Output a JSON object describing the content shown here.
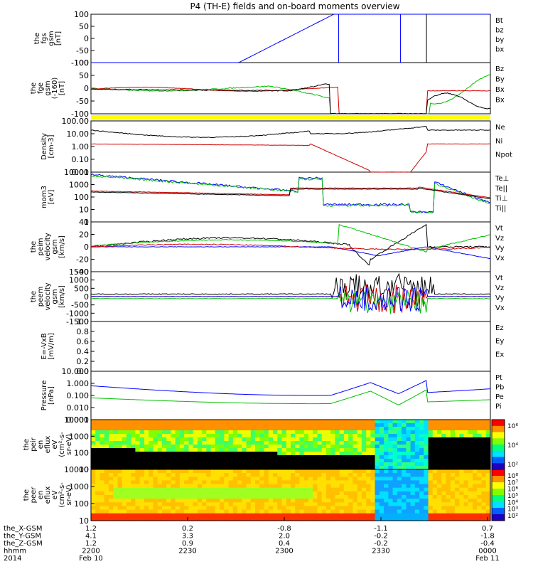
{
  "title": "P4 (TH-E) fields and on-board moments overview",
  "chart_data": [
    {
      "type": "line",
      "panel": "fgs_gsm",
      "ylabel": [
        "the",
        "fgs",
        "gsm",
        "[nT]"
      ],
      "yticks": [
        "100",
        "50",
        "0",
        "-50",
        "-100"
      ],
      "ylim": [
        -100,
        100
      ],
      "legend": [
        {
          "name": "Bt",
          "color": "#000000"
        },
        {
          "name": "bz",
          "color": "#d00000"
        },
        {
          "name": "by",
          "color": "#00c000"
        },
        {
          "name": "bx",
          "color": "#0000ff"
        }
      ]
    },
    {
      "type": "line",
      "panel": "fge_gsm",
      "ylabel": [
        "the",
        "fge",
        "gsm",
        "(-160)",
        "[nT]"
      ],
      "yticks": [
        "100",
        "50",
        "0",
        "-50",
        "-100"
      ],
      "ylim": [
        -120,
        100
      ],
      "legend": [
        {
          "name": "Bz",
          "color": "#000000"
        },
        {
          "name": "By",
          "color": "#d00000"
        },
        {
          "name": "Bx",
          "color": "#00c000"
        },
        {
          "name": "Bx",
          "color": "#000000"
        }
      ]
    },
    {
      "type": "line",
      "panel": "density",
      "ylabel": [
        "Density",
        "[cm-3]"
      ],
      "yticks": [
        "100.00",
        "10.00",
        "1.00",
        "0.10",
        "0.01"
      ],
      "legend": [
        {
          "name": "Ne",
          "color": "#d00000"
        },
        {
          "name": "Ni",
          "color": "#000000"
        },
        {
          "name": "Npot",
          "color": "#0000ff"
        }
      ]
    },
    {
      "type": "line",
      "panel": "temperature",
      "ylabel": [
        "mom3",
        "[eV]"
      ],
      "yticks": [
        "10000",
        "1000",
        "100",
        "10",
        "1"
      ],
      "legend": [
        {
          "name": "Te⊥",
          "color": "#d00000"
        },
        {
          "name": "Te||",
          "color": "#000000"
        },
        {
          "name": "Ti⊥",
          "color": "#0000ff"
        },
        {
          "name": "Ti||",
          "color": "#00c000"
        }
      ]
    },
    {
      "type": "line",
      "panel": "peim_velocity",
      "ylabel": [
        "the",
        "peim",
        "velocity",
        "gsm",
        "[km/s]"
      ],
      "yticks": [
        "40",
        "20",
        "0",
        "-20",
        "-40"
      ],
      "ylim": [
        -40,
        40
      ],
      "legend": [
        {
          "name": "Vt",
          "color": "#000000"
        },
        {
          "name": "Vz",
          "color": "#d00000"
        },
        {
          "name": "Vy",
          "color": "#00c000"
        },
        {
          "name": "Vx",
          "color": "#0000ff"
        }
      ]
    },
    {
      "type": "line",
      "panel": "peem_velocity",
      "ylabel": [
        "the",
        "peem",
        "velocity",
        "gsm",
        "[km/s]"
      ],
      "yticks": [
        "1500",
        "1000",
        "500",
        "0",
        "-500",
        "-1000",
        "-1500"
      ],
      "ylim": [
        -1500,
        1500
      ],
      "legend": [
        {
          "name": "Vt",
          "color": "#000000"
        },
        {
          "name": "Vz",
          "color": "#d00000"
        },
        {
          "name": "Vy",
          "color": "#00c000"
        },
        {
          "name": "Vx",
          "color": "#0000ff"
        }
      ]
    },
    {
      "type": "line",
      "panel": "efield",
      "ylabel": [
        "E=-VxB",
        "[mV/m]"
      ],
      "yticks": [
        "1.0",
        "0.8",
        "0.6",
        "0.4",
        "0.2",
        "0.0"
      ],
      "ylim": [
        0,
        1
      ],
      "legend": [
        {
          "name": "Ez",
          "color": "#d00000"
        },
        {
          "name": "Ey",
          "color": "#00c000"
        },
        {
          "name": "Ex",
          "color": "#0000ff"
        }
      ]
    },
    {
      "type": "line",
      "panel": "pressure",
      "ylabel": [
        "Pressure",
        "[nPa]"
      ],
      "yticks": [
        "10.000",
        "1.000",
        "0.100",
        "0.010",
        "0.001"
      ],
      "legend": [
        {
          "name": "Pt",
          "color": "#000000"
        },
        {
          "name": "Pb",
          "color": "#d00000"
        },
        {
          "name": "Pe",
          "color": "#00c000"
        },
        {
          "name": "Pi",
          "color": "#0000ff"
        }
      ]
    },
    {
      "type": "heatmap",
      "panel": "peir_en_eflux",
      "ylabel": [
        "the",
        "peir",
        "en",
        "eflux",
        "eV",
        "(cm²-s-",
        "sr-eV)"
      ],
      "yticks": [
        "10000",
        "1000",
        "100",
        "10"
      ],
      "colorbar_ticks": [
        "10⁶",
        "10⁴",
        "10²"
      ]
    },
    {
      "type": "heatmap",
      "panel": "peer_en_eflux",
      "ylabel": [
        "the",
        "peer",
        "en",
        "eflux",
        "eV",
        "(cm²-s-",
        "sr-eV)"
      ],
      "yticks": [
        "10000",
        "1000",
        "100",
        "10"
      ],
      "colorbar_ticks": [
        "10⁸",
        "10⁷",
        "10⁶",
        "10⁵",
        "10⁴",
        "10³",
        "10²"
      ]
    }
  ],
  "xaxis": {
    "rows": [
      {
        "label": "the_X-GSM",
        "values": [
          "1.2",
          "0.2",
          "-0.8",
          "-1.1",
          "0.7"
        ]
      },
      {
        "label": "the_Y-GSM",
        "values": [
          "4.1",
          "3.3",
          "2.0",
          "-0.2",
          "-1.8"
        ]
      },
      {
        "label": "the_Z-GSM",
        "values": [
          "1.2",
          "0.9",
          "0.4",
          "-0.2",
          "-0.4"
        ]
      },
      {
        "label": "hhmm",
        "values": [
          "2200",
          "2230",
          "2300",
          "2330",
          "0000"
        ]
      },
      {
        "label": "2014",
        "values": [
          "Feb 10",
          "",
          "",
          "",
          "Feb 11"
        ]
      }
    ]
  }
}
